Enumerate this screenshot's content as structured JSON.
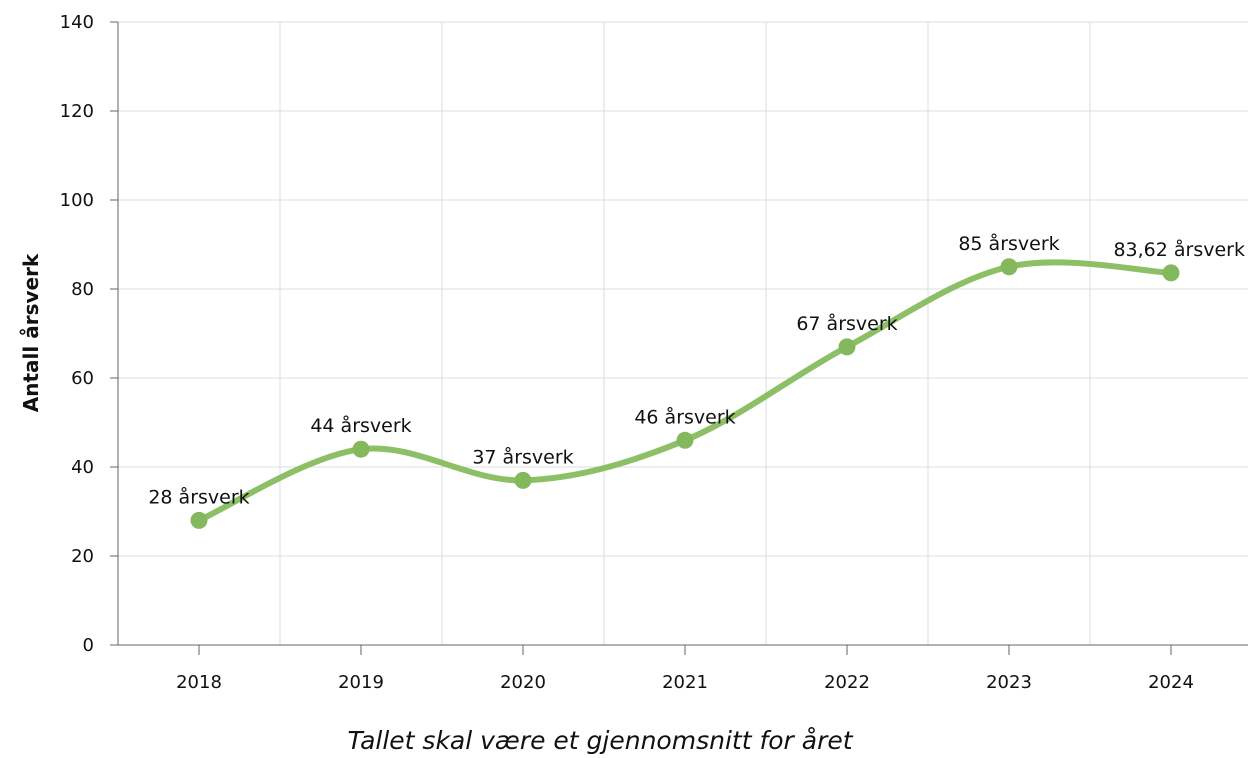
{
  "chart_data": {
    "type": "line",
    "x": [
      "2018",
      "2019",
      "2020",
      "2021",
      "2022",
      "2023",
      "2024"
    ],
    "series": [
      {
        "values": [
          28,
          44,
          37,
          46,
          67,
          85,
          83.62
        ],
        "labels": [
          "28 årsverk",
          "44 årsverk",
          "37 årsverk",
          "46 årsverk",
          "67 årsverk",
          "85 årsverk",
          "83,62 årsverk"
        ]
      }
    ],
    "ylabel": "Antall årsverk",
    "caption": "Tallet skal være et gjennomsnitt for året",
    "ylim": [
      0,
      140
    ],
    "yticks": [
      "0",
      "20",
      "40",
      "60",
      "80",
      "100",
      "120",
      "140"
    ],
    "grid": true,
    "line_color": "#8dbf67",
    "point_color": "#84b85d",
    "grid_color": "#dddddd",
    "axis_color": "#666666"
  }
}
